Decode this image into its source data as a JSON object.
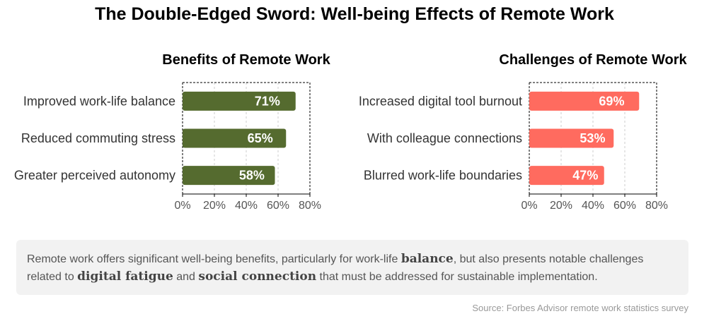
{
  "title": "The Double-Edged Sword: Well-being Effects of Remote Work",
  "colors": {
    "benefits": "#556b2f",
    "challenges": "#ff6b5f"
  },
  "chart_data": [
    {
      "type": "bar",
      "orientation": "horizontal",
      "title": "Benefits of Remote Work",
      "categories": [
        "Improved work-life balance",
        "Reduced commuting stress",
        "Greater perceived autonomy"
      ],
      "values": [
        71,
        65,
        58
      ],
      "value_labels": [
        "71%",
        "65%",
        "58%"
      ],
      "xlim": [
        0,
        80
      ],
      "xticks": [
        "0%",
        "20%",
        "40%",
        "60%",
        "80%"
      ],
      "grid": "vertical dashed",
      "color": "#556b2f"
    },
    {
      "type": "bar",
      "orientation": "horizontal",
      "title": "Challenges of Remote Work",
      "categories": [
        "Increased digital tool burnout",
        "With colleague connections",
        "Blurred work-life boundaries"
      ],
      "values": [
        69,
        53,
        47
      ],
      "value_labels": [
        "69%",
        "53%",
        "47%"
      ],
      "xlim": [
        0,
        80
      ],
      "xticks": [
        "0%",
        "20%",
        "40%",
        "60%",
        "80%"
      ],
      "grid": "vertical dashed",
      "color": "#ff6b5f"
    }
  ],
  "summary": {
    "part1": "Remote work offers significant well-being benefits, particularly for work-life ",
    "em1": "balance",
    "part2": ", but also presents notable challenges related to ",
    "em2": "digital fatigue",
    "part3": " and ",
    "em3": "social connection",
    "part4": " that must be addressed for sustainable implementation."
  },
  "source": "Source: Forbes Advisor remote work statistics survey"
}
